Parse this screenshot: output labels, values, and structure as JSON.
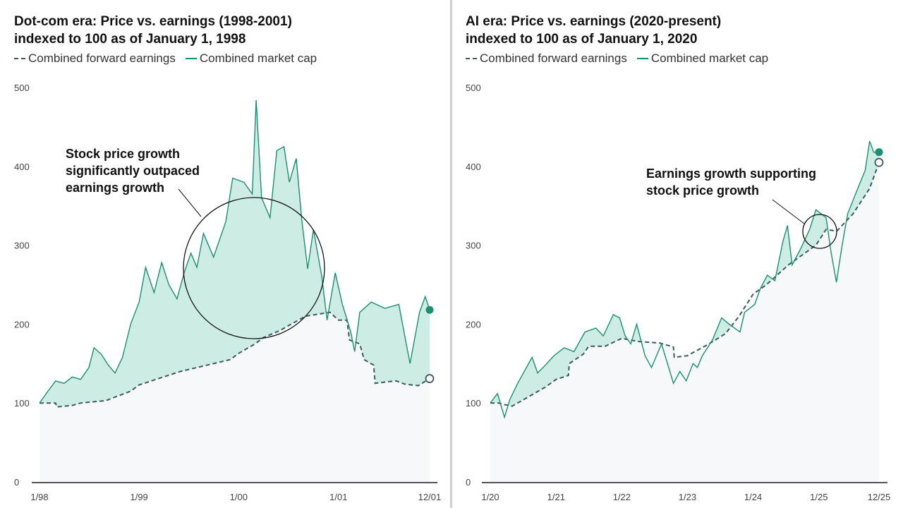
{
  "colors": {
    "market_cap": "#1a9070",
    "fill_between": "#cdece4",
    "earnings": "#3d5a60",
    "under_earnings": "#f7f8fa"
  },
  "chart_data": [
    {
      "type": "area",
      "title": "Dot-com era: Price vs. earnings (1998-2001)",
      "subtitle": "indexed to 100 as of January 1, 1998",
      "legend": [
        "Combined forward earnings",
        "Combined market cap"
      ],
      "legend_placement": "top-left",
      "ylim": [
        0,
        500
      ],
      "yticks": [
        "0",
        "100",
        "200",
        "300",
        "400",
        "500"
      ],
      "xticks": [
        {
          "label": "1/98",
          "date": "1998-01-01"
        },
        {
          "label": "1/99",
          "date": "1999-01-01"
        },
        {
          "label": "1/00",
          "date": "2000-01-01"
        },
        {
          "label": "1/01",
          "date": "2001-01-01"
        },
        {
          "label": "12/01",
          "date": "2001-12-01"
        }
      ],
      "xlim": [
        "1998-01-01",
        "2001-12-01"
      ],
      "grid": false,
      "annotation": {
        "lines": [
          "Stock price growth",
          "significantly outpaced",
          "earnings growth"
        ]
      },
      "series": [
        {
          "name": "Combined market cap",
          "style": "solid",
          "points": [
            [
              "1998-01-01",
              100
            ],
            [
              "1998-02-01",
              115
            ],
            [
              "1998-03-01",
              128
            ],
            [
              "1998-04-01",
              125
            ],
            [
              "1998-05-01",
              133
            ],
            [
              "1998-06-01",
              130
            ],
            [
              "1998-07-01",
              145
            ],
            [
              "1998-07-20",
              170
            ],
            [
              "1998-08-15",
              162
            ],
            [
              "1998-09-10",
              148
            ],
            [
              "1998-10-05",
              138
            ],
            [
              "1998-11-01",
              158
            ],
            [
              "1998-12-01",
              200
            ],
            [
              "1999-01-01",
              228
            ],
            [
              "1999-01-25",
              272
            ],
            [
              "1999-02-25",
              240
            ],
            [
              "1999-03-25",
              278
            ],
            [
              "1999-04-20",
              250
            ],
            [
              "1999-05-20",
              232
            ],
            [
              "1999-06-15",
              265
            ],
            [
              "1999-07-10",
              290
            ],
            [
              "1999-08-01",
              272
            ],
            [
              "1999-08-25",
              315
            ],
            [
              "1999-10-01",
              285
            ],
            [
              "1999-11-15",
              330
            ],
            [
              "1999-12-10",
              385
            ],
            [
              "2000-01-20",
              380
            ],
            [
              "2000-02-20",
              365
            ],
            [
              "2000-03-05",
              484
            ],
            [
              "2000-03-25",
              360
            ],
            [
              "2000-04-25",
              335
            ],
            [
              "2000-05-20",
              420
            ],
            [
              "2000-06-15",
              425
            ],
            [
              "2000-07-05",
              380
            ],
            [
              "2000-07-30",
              410
            ],
            [
              "2000-08-20",
              330
            ],
            [
              "2000-09-10",
              270
            ],
            [
              "2000-10-01",
              320
            ],
            [
              "2000-11-01",
              260
            ],
            [
              "2000-11-20",
              205
            ],
            [
              "2000-12-20",
              265
            ],
            [
              "2001-01-15",
              225
            ],
            [
              "2001-02-15",
              190
            ],
            [
              "2001-03-01",
              165
            ],
            [
              "2001-03-20",
              215
            ],
            [
              "2001-05-01",
              228
            ],
            [
              "2001-06-20",
              220
            ],
            [
              "2001-08-10",
              225
            ],
            [
              "2001-09-20",
              150
            ],
            [
              "2001-10-25",
              215
            ],
            [
              "2001-11-15",
              235
            ],
            [
              "2001-12-01",
              218
            ]
          ]
        },
        {
          "name": "Combined forward earnings",
          "style": "dashed",
          "points": [
            [
              "1998-01-01",
              100
            ],
            [
              "1998-03-01",
              100
            ],
            [
              "1998-03-05",
              95
            ],
            [
              "1998-05-01",
              97
            ],
            [
              "1998-06-01",
              100
            ],
            [
              "1998-09-01",
              103
            ],
            [
              "1998-12-01",
              115
            ],
            [
              "1999-01-01",
              123
            ],
            [
              "1999-06-01",
              140
            ],
            [
              "1999-12-01",
              155
            ],
            [
              "2000-01-01",
              163
            ],
            [
              "2000-03-01",
              175
            ],
            [
              "2000-04-01",
              183
            ],
            [
              "2000-06-01",
              192
            ],
            [
              "2000-09-01",
              210
            ],
            [
              "2000-12-01",
              215
            ],
            [
              "2001-01-01",
              205
            ],
            [
              "2001-02-01",
              205
            ],
            [
              "2001-02-10",
              180
            ],
            [
              "2001-03-20",
              175
            ],
            [
              "2001-04-05",
              155
            ],
            [
              "2001-05-10",
              148
            ],
            [
              "2001-05-15",
              125
            ],
            [
              "2001-07-01",
              127
            ],
            [
              "2001-08-01",
              128
            ],
            [
              "2001-09-01",
              124
            ],
            [
              "2001-10-20",
              122
            ],
            [
              "2001-12-01",
              131
            ]
          ]
        }
      ]
    },
    {
      "type": "area",
      "title": "AI era: Price vs. earnings (2020-present)",
      "subtitle": "indexed to 100 as of January 1, 2020",
      "legend": [
        "Combined forward earnings",
        "Combined market cap"
      ],
      "legend_placement": "top-left",
      "ylim": [
        0,
        500
      ],
      "yticks": [
        "0",
        "100",
        "200",
        "300",
        "400",
        "500"
      ],
      "xticks": [
        {
          "label": "1/20",
          "date": "2020-01-01"
        },
        {
          "label": "1/21",
          "date": "2021-01-01"
        },
        {
          "label": "1/22",
          "date": "2022-01-01"
        },
        {
          "label": "1/23",
          "date": "2023-01-01"
        },
        {
          "label": "1/24",
          "date": "2024-01-01"
        },
        {
          "label": "1/25",
          "date": "2025-01-01"
        },
        {
          "label": "12/25",
          "date": "2025-12-01"
        }
      ],
      "xlim": [
        "2020-01-01",
        "2025-12-01"
      ],
      "grid": false,
      "annotation": {
        "lines": [
          "Earnings growth supporting",
          "stock price growth"
        ]
      },
      "series": [
        {
          "name": "Combined market cap",
          "style": "solid",
          "points": [
            [
              "2020-01-01",
              100
            ],
            [
              "2020-02-10",
              112
            ],
            [
              "2020-03-20",
              82
            ],
            [
              "2020-04-20",
              105
            ],
            [
              "2020-06-01",
              125
            ],
            [
              "2020-08-20",
              158
            ],
            [
              "2020-09-20",
              138
            ],
            [
              "2020-11-10",
              150
            ],
            [
              "2020-12-20",
              160
            ],
            [
              "2021-02-15",
              170
            ],
            [
              "2021-04-10",
              165
            ],
            [
              "2021-06-10",
              190
            ],
            [
              "2021-08-10",
              195
            ],
            [
              "2021-09-20",
              185
            ],
            [
              "2021-11-15",
              212
            ],
            [
              "2021-12-20",
              208
            ],
            [
              "2022-01-20",
              185
            ],
            [
              "2022-02-20",
              175
            ],
            [
              "2022-03-25",
              200
            ],
            [
              "2022-05-10",
              160
            ],
            [
              "2022-06-15",
              145
            ],
            [
              "2022-08-10",
              175
            ],
            [
              "2022-09-25",
              140
            ],
            [
              "2022-10-15",
              125
            ],
            [
              "2022-11-20",
              140
            ],
            [
              "2022-12-25",
              128
            ],
            [
              "2023-02-01",
              150
            ],
            [
              "2023-02-25",
              145
            ],
            [
              "2023-03-25",
              160
            ],
            [
              "2023-05-20",
              180
            ],
            [
              "2023-07-10",
              208
            ],
            [
              "2023-08-20",
              200
            ],
            [
              "2023-10-20",
              190
            ],
            [
              "2023-11-15",
              215
            ],
            [
              "2024-01-10",
              225
            ],
            [
              "2024-02-10",
              245
            ],
            [
              "2024-03-20",
              262
            ],
            [
              "2024-05-01",
              255
            ],
            [
              "2024-06-15",
              305
            ],
            [
              "2024-07-10",
              325
            ],
            [
              "2024-08-05",
              275
            ],
            [
              "2024-09-20",
              295
            ],
            [
              "2024-11-10",
              320
            ],
            [
              "2024-12-15",
              345
            ],
            [
              "2025-02-10",
              335
            ],
            [
              "2025-03-10",
              290
            ],
            [
              "2025-04-08",
              253
            ],
            [
              "2025-05-10",
              300
            ],
            [
              "2025-06-10",
              340
            ],
            [
              "2025-08-10",
              375
            ],
            [
              "2025-09-15",
              395
            ],
            [
              "2025-10-10",
              432
            ],
            [
              "2025-11-01",
              418
            ],
            [
              "2025-12-01",
              418
            ]
          ]
        },
        {
          "name": "Combined forward earnings",
          "style": "dashed",
          "points": [
            [
              "2020-01-01",
              100
            ],
            [
              "2020-02-15",
              100
            ],
            [
              "2020-03-20",
              98
            ],
            [
              "2020-05-01",
              96
            ],
            [
              "2020-08-01",
              108
            ],
            [
              "2020-11-01",
              120
            ],
            [
              "2021-01-01",
              130
            ],
            [
              "2021-03-10",
              135
            ],
            [
              "2021-03-15",
              150
            ],
            [
              "2021-06-01",
              162
            ],
            [
              "2021-07-01",
              172
            ],
            [
              "2021-10-01",
              172
            ],
            [
              "2022-01-01",
              182
            ],
            [
              "2022-04-01",
              178
            ],
            [
              "2022-08-01",
              176
            ],
            [
              "2022-10-15",
              171
            ],
            [
              "2022-10-20",
              158
            ],
            [
              "2023-01-01",
              160
            ],
            [
              "2023-05-01",
              175
            ],
            [
              "2023-08-01",
              188
            ],
            [
              "2023-10-15",
              210
            ],
            [
              "2024-01-01",
              238
            ],
            [
              "2024-03-15",
              250
            ],
            [
              "2024-07-15",
              275
            ],
            [
              "2024-12-15",
              300
            ],
            [
              "2025-02-10",
              320
            ],
            [
              "2025-04-10",
              318
            ],
            [
              "2025-07-10",
              340
            ],
            [
              "2025-10-10",
              372
            ],
            [
              "2025-12-01",
              405
            ]
          ]
        }
      ]
    }
  ]
}
